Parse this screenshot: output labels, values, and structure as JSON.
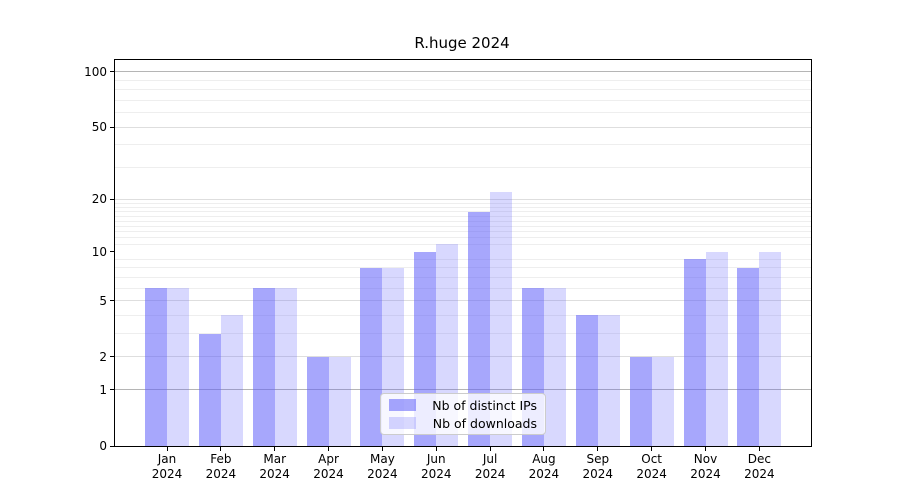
{
  "title": "R.huge 2024",
  "legend": {
    "items": [
      "Nb of distinct IPs",
      "Nb of downloads"
    ]
  },
  "colors": {
    "bar_base": "#5e5efa",
    "distinct_ips_alpha": 0.55,
    "downloads_alpha": 0.24,
    "grid_major": "#b5b5b5",
    "grid_labeled": "#dedede",
    "grid_minor": "#eeeeee",
    "spine": "#000000",
    "legend_border": "#cccccc"
  },
  "chart_data": {
    "type": "bar",
    "title": "R.huge 2024",
    "categories": [
      "Jan",
      "Feb",
      "Mar",
      "Apr",
      "May",
      "Jun",
      "Jul",
      "Aug",
      "Sep",
      "Oct",
      "Nov",
      "Dec"
    ],
    "year": "2024",
    "series": [
      {
        "name": "Nb of distinct IPs",
        "values": [
          6,
          3,
          6,
          2,
          8,
          10,
          17,
          6,
          4,
          2,
          9,
          8
        ]
      },
      {
        "name": "Nb of downloads",
        "values": [
          6,
          4,
          6,
          2,
          8,
          11,
          22,
          6,
          4,
          2,
          10,
          10
        ]
      }
    ],
    "xlabel": "",
    "ylabel": "",
    "yscale": "log1p",
    "y_ticks": [
      0,
      1,
      2,
      5,
      10,
      20,
      50,
      100
    ],
    "ylim": [
      0,
      116
    ],
    "grid": true,
    "legend_position": "lower center"
  }
}
